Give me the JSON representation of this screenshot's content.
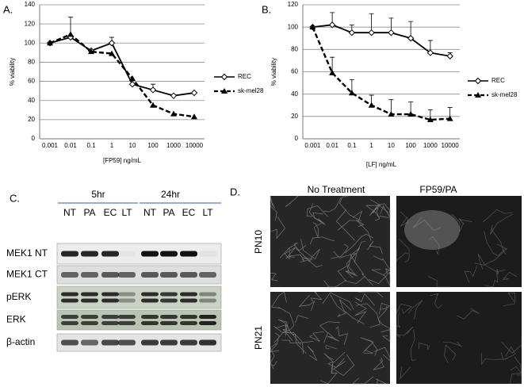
{
  "chart_data": [
    {
      "type": "line",
      "ylabel": "% viability",
      "xlabel": "[FP59] ng/mL",
      "categories": [
        "0.001",
        "0.01",
        "0.1",
        "1",
        "10",
        "100",
        "1000",
        "10000"
      ],
      "ylim": [
        0,
        140
      ],
      "yticks": [
        0,
        20,
        40,
        60,
        80,
        100,
        120,
        140
      ],
      "grid": true,
      "legend": "right",
      "series": [
        {
          "name": "REC",
          "color": "#000000",
          "marker": "diamond",
          "dashed": false,
          "values": [
            100,
            106,
            92,
            100,
            57,
            51,
            45,
            48
          ],
          "errors": [
            null,
            21,
            null,
            6,
            null,
            6,
            null,
            null
          ]
        },
        {
          "name": "sk-mel28",
          "color": "#000000",
          "marker": "triangle",
          "dashed": true,
          "values": [
            100,
            109,
            91,
            89,
            63,
            35,
            26,
            23
          ]
        }
      ]
    },
    {
      "type": "line",
      "ylabel": "% viability",
      "xlabel": "[LF] ng/mL",
      "categories": [
        "0.001",
        "0.01",
        "0.1",
        "1",
        "10",
        "100",
        "1000",
        "10000"
      ],
      "ylim": [
        0,
        120
      ],
      "yticks": [
        0,
        20,
        40,
        60,
        80,
        100,
        120
      ],
      "grid": true,
      "legend": "right",
      "series": [
        {
          "name": "REC",
          "color": "#000000",
          "marker": "diamond",
          "dashed": false,
          "values": [
            100,
            102,
            95,
            95,
            95,
            90,
            77,
            74
          ],
          "errors": [
            null,
            11,
            7,
            17,
            13,
            15,
            11,
            3
          ]
        },
        {
          "name": "sk-mel28",
          "color": "#000000",
          "marker": "triangle",
          "dashed": true,
          "values": [
            100,
            59,
            41,
            30,
            22,
            22,
            17,
            18
          ],
          "errors": [
            null,
            14,
            12,
            9,
            13,
            11,
            9,
            10
          ]
        }
      ]
    }
  ],
  "panel_labels": [
    "A.",
    "B.",
    "C.",
    "D."
  ],
  "blot": {
    "time_groups": [
      "5hr",
      "24hr"
    ],
    "lanes": [
      "NT",
      "PA",
      "EC",
      "LT",
      "NT",
      "PA",
      "EC",
      "LT"
    ],
    "rows": [
      "MEK1 NT",
      "MEK1 CT",
      "pERK",
      "ERK",
      "β-actin"
    ]
  },
  "images": {
    "columns": [
      "No Treatment",
      "FP59/PA"
    ],
    "rows": [
      "PN10",
      "PN21"
    ]
  }
}
